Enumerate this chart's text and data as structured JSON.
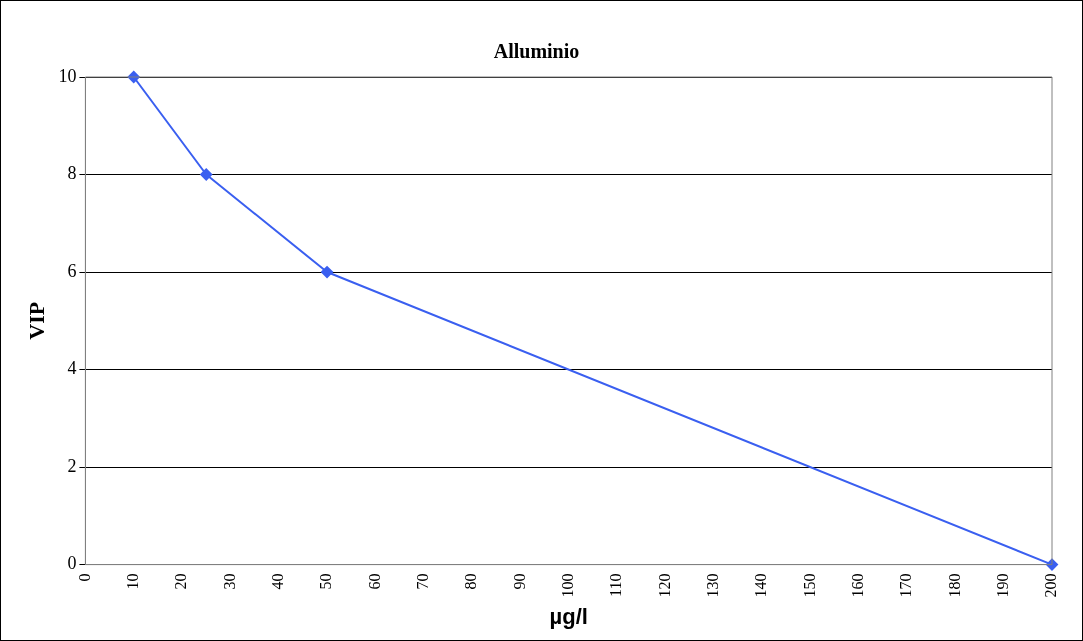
{
  "chart_data": {
    "type": "line",
    "title": "Alluminio",
    "xlabel": "µg/l",
    "ylabel": "VIP",
    "x": [
      10,
      25,
      50,
      200
    ],
    "series": [
      {
        "color": "#3a5ff0",
        "values": [
          10,
          8,
          6,
          0
        ]
      }
    ],
    "xlim": [
      0,
      200
    ],
    "xticks": [
      0,
      10,
      20,
      30,
      40,
      50,
      60,
      70,
      80,
      90,
      100,
      110,
      120,
      130,
      140,
      150,
      160,
      170,
      180,
      190,
      200
    ],
    "ylim": [
      0,
      10
    ],
    "yticks": [
      0,
      2,
      4,
      6,
      8,
      10
    ],
    "grid": "y",
    "marker": "diamond",
    "line_style": "solid"
  }
}
